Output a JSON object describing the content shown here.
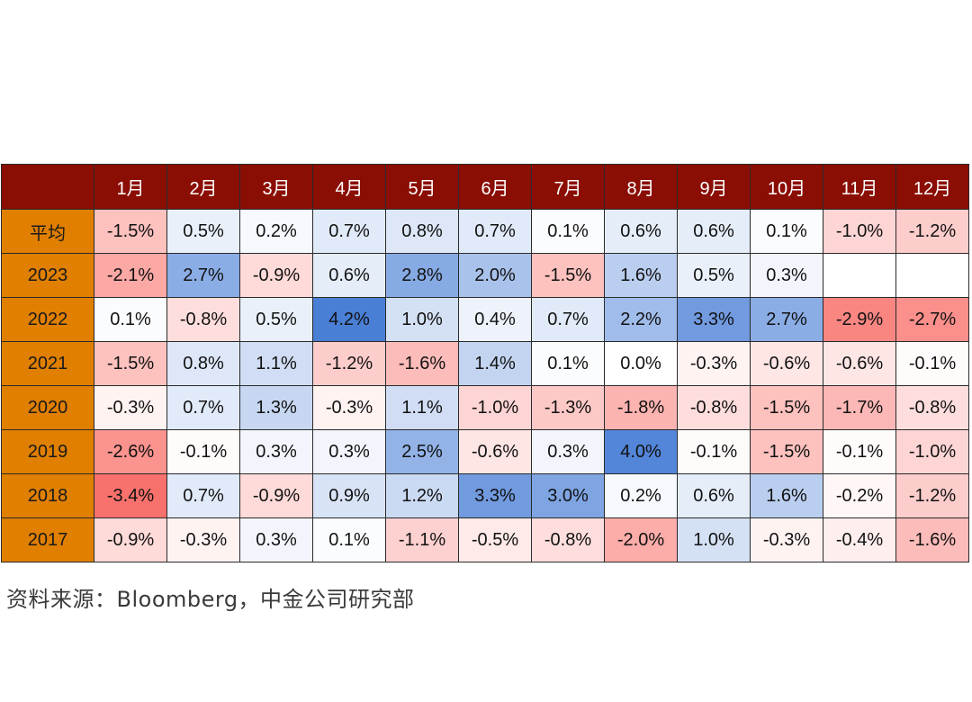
{
  "chart_data": {
    "type": "heatmap",
    "x_labels": [
      "1月",
      "2月",
      "3月",
      "4月",
      "5月",
      "6月",
      "7月",
      "8月",
      "9月",
      "10月",
      "11月",
      "12月"
    ],
    "y_labels": [
      "平均",
      "2023",
      "2022",
      "2021",
      "2020",
      "2019",
      "2018",
      "2017"
    ],
    "unit": "%",
    "values": [
      [
        -1.5,
        0.5,
        0.2,
        0.7,
        0.8,
        0.7,
        0.1,
        0.6,
        0.6,
        0.1,
        -1.0,
        -1.2
      ],
      [
        -2.1,
        2.7,
        -0.9,
        0.6,
        2.8,
        2.0,
        -1.5,
        1.6,
        0.5,
        0.3,
        null,
        null
      ],
      [
        0.1,
        -0.8,
        0.5,
        4.2,
        1.0,
        0.4,
        0.7,
        2.2,
        3.3,
        2.7,
        -2.9,
        -2.7
      ],
      [
        -1.5,
        0.8,
        1.1,
        -1.2,
        -1.6,
        1.4,
        0.1,
        0.0,
        -0.3,
        -0.6,
        -0.6,
        -0.1
      ],
      [
        -0.3,
        0.7,
        1.3,
        -0.3,
        1.1,
        -1.0,
        -1.3,
        -1.8,
        -0.8,
        -1.5,
        -1.7,
        -0.8
      ],
      [
        -2.6,
        -0.1,
        0.3,
        0.3,
        2.5,
        -0.6,
        0.3,
        4.0,
        -0.1,
        -1.5,
        -0.1,
        -1.0
      ],
      [
        -3.4,
        0.7,
        -0.9,
        0.9,
        1.2,
        3.3,
        3.0,
        0.2,
        0.6,
        1.6,
        -0.2,
        -1.2
      ],
      [
        -0.9,
        -0.3,
        0.3,
        0.1,
        -1.1,
        -0.5,
        -0.8,
        -2.0,
        1.0,
        -0.3,
        -0.4,
        -1.6
      ]
    ],
    "color_scale": {
      "negative": "#f8504a",
      "neutral": "#ffffff",
      "positive": "#4a7fd6"
    }
  },
  "colors": {
    "header_bg": "#8b0e04",
    "row_label_bg": "#e07f00"
  },
  "source_text": "资料来源：Bloomberg，中金公司研究部"
}
